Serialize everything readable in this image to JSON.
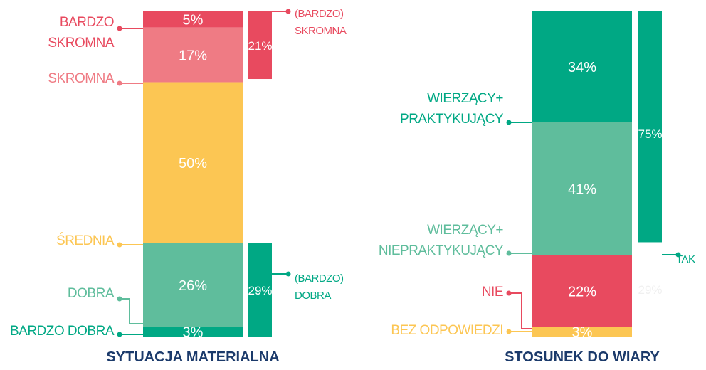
{
  "chart_data": [
    {
      "type": "stacked_bar",
      "title": "SYTUACJA MATERIALNA",
      "categories": [
        "BARDZO\nSKROMNA",
        "SKROMNA",
        "ŚREDNIA",
        "DOBRA",
        "BARDZO DOBRA"
      ],
      "values": [
        5,
        17,
        50,
        26,
        3
      ],
      "value_labels": [
        "5%",
        "17%",
        "50%",
        "26%",
        "3%"
      ],
      "colors": [
        "#e84a5f",
        "#ef7b84",
        "#fcc653",
        "#5fbd9c",
        "#00a884"
      ],
      "groups": [
        {
          "name": "(BARDZO)\nSKROMNA",
          "value": 21,
          "value_label": "21%",
          "color": "#e84a5f"
        },
        {
          "name": "(BARDZO)\nDOBRA",
          "value": 29,
          "value_label": "29%",
          "color": "#00a884"
        }
      ]
    },
    {
      "type": "stacked_bar",
      "title": "STOSUNEK DO WIARY",
      "categories": [
        "WIERZĄCY+\nPRAKTYKUJĄCY",
        "WIERZĄCY+\nNIEPRAKTYKUJĄCY",
        "NIE",
        "BEZ ODPOWIEDZI"
      ],
      "values": [
        34,
        41,
        22,
        3
      ],
      "value_labels": [
        "34%",
        "41%",
        "22%",
        "3%"
      ],
      "colors": [
        "#00a884",
        "#5fbd9c",
        "#e84a5f",
        "#fcc653"
      ],
      "groups": [
        {
          "name": "TAK",
          "value": 75,
          "value_label": "75%",
          "color": "#00a884"
        },
        {
          "value": 29,
          "value_label": "29%",
          "color": "#ffffff"
        }
      ]
    }
  ]
}
